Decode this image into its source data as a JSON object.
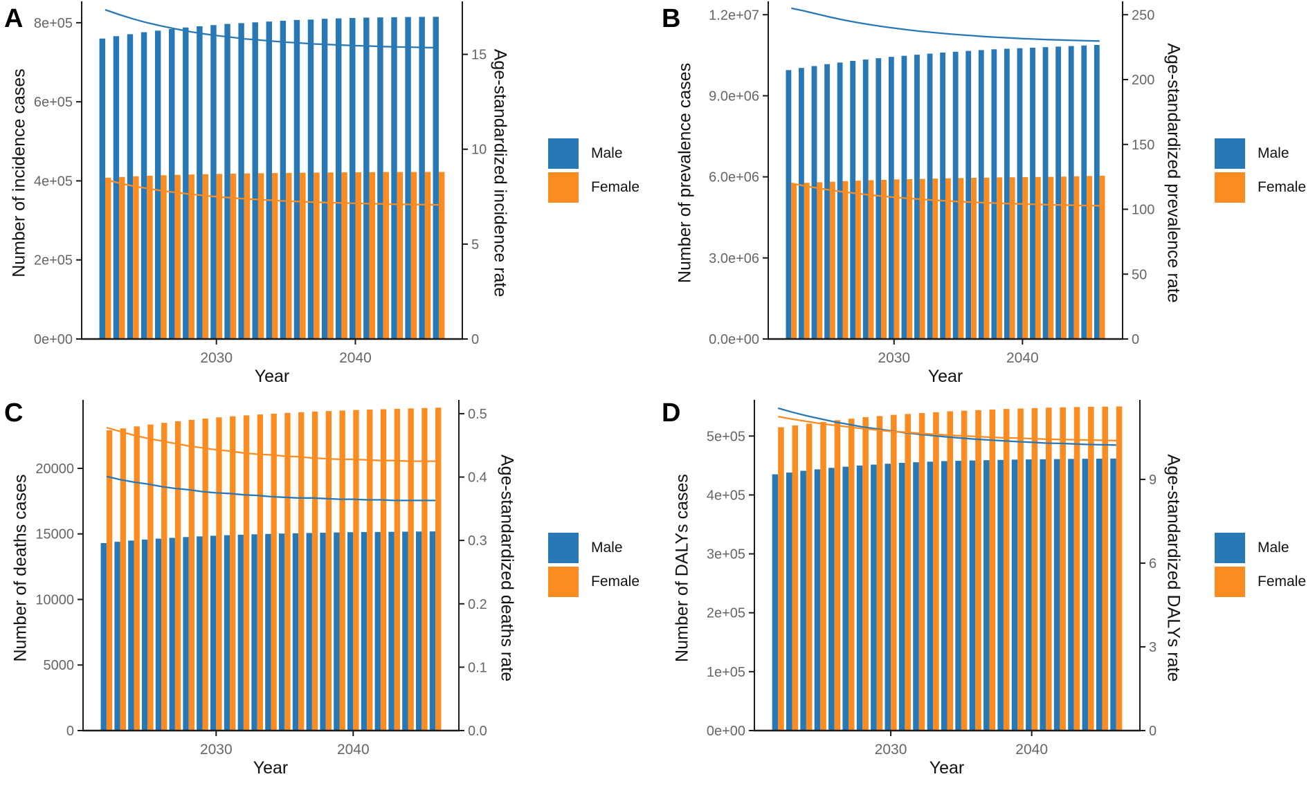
{
  "colors": {
    "male": "#2878B5",
    "female": "#FB8C21",
    "axis_line": "#1A1A1A",
    "tick_text": "#666666"
  },
  "legend": {
    "male_label": "Male",
    "female_label": "Female"
  },
  "years": [
    2022,
    2023,
    2024,
    2025,
    2026,
    2027,
    2028,
    2029,
    2030,
    2031,
    2032,
    2033,
    2034,
    2035,
    2036,
    2037,
    2038,
    2039,
    2040,
    2041,
    2042,
    2043,
    2044,
    2045,
    2046
  ],
  "chart_data": [
    {
      "type": "bar+line-dual-axis",
      "panel": "A",
      "xlabel": "Year",
      "ylabel_left": "Number of incidence cases",
      "ylabel_right": "Age-standardized incidence rate",
      "x_ticks": [
        2030,
        2040
      ],
      "left_max": 840000,
      "right_max": 17.5,
      "left_ticks": [
        {
          "v": 0,
          "label": "0e+00"
        },
        {
          "v": 200000,
          "label": "2e+05"
        },
        {
          "v": 400000,
          "label": "4e+05"
        },
        {
          "v": 600000,
          "label": "6e+05"
        },
        {
          "v": 800000,
          "label": "8e+05"
        }
      ],
      "right_ticks": [
        {
          "v": 0,
          "label": "0"
        },
        {
          "v": 5,
          "label": "5"
        },
        {
          "v": 10,
          "label": "10"
        },
        {
          "v": 15,
          "label": "15"
        }
      ],
      "series": [
        {
          "name": "Male",
          "kind": "bar",
          "axis": "left",
          "values": [
            760000,
            766000,
            771000,
            776000,
            780000,
            784000,
            788000,
            791000,
            794000,
            797000,
            799000,
            801000,
            803000,
            805000,
            807000,
            808000,
            810000,
            811000,
            812000,
            813000,
            813500,
            814000,
            814500,
            814800,
            815000
          ]
        },
        {
          "name": "Female",
          "kind": "bar",
          "axis": "left",
          "values": [
            408000,
            410000,
            411500,
            413000,
            414200,
            415200,
            416100,
            416900,
            417600,
            418200,
            418800,
            419300,
            419800,
            420200,
            420600,
            421000,
            421300,
            421600,
            421800,
            422000,
            422200,
            422300,
            422400,
            422500,
            422500
          ]
        },
        {
          "name": "Male age-standardized incidence rate",
          "kind": "line",
          "axis": "right",
          "values": [
            17.35,
            17.1,
            16.87,
            16.67,
            16.5,
            16.35,
            16.21,
            16.09,
            15.99,
            15.91,
            15.82,
            15.76,
            15.7,
            15.64,
            15.6,
            15.55,
            15.52,
            15.49,
            15.46,
            15.44,
            15.41,
            15.39,
            15.38,
            15.36,
            15.35
          ]
        },
        {
          "name": "Female age-standardized incidence rate",
          "kind": "line",
          "axis": "right",
          "values": [
            8.4,
            8.22,
            8.06,
            7.94,
            7.82,
            7.73,
            7.64,
            7.57,
            7.5,
            7.44,
            7.39,
            7.35,
            7.31,
            7.27,
            7.24,
            7.21,
            7.19,
            7.17,
            7.15,
            7.13,
            7.12,
            7.1,
            7.09,
            7.08,
            7.07
          ]
        }
      ]
    },
    {
      "type": "bar+line-dual-axis",
      "panel": "B",
      "xlabel": "Year",
      "ylabel_left": "Number of prevalence cases",
      "ylabel_right": "Age-standardized prevalence rate",
      "x_ticks": [
        2030,
        2040
      ],
      "left_max": 12288000,
      "right_max": 256,
      "left_ticks": [
        {
          "v": 0,
          "label": "0.0e+00"
        },
        {
          "v": 3000000,
          "label": "3.0e+06"
        },
        {
          "v": 6000000,
          "label": "6.0e+06"
        },
        {
          "v": 9000000,
          "label": "9.0e+06"
        },
        {
          "v": 12000000,
          "label": "1.2e+07"
        }
      ],
      "right_ticks": [
        {
          "v": 0,
          "label": "0"
        },
        {
          "v": 50,
          "label": "50"
        },
        {
          "v": 100,
          "label": "100"
        },
        {
          "v": 150,
          "label": "150"
        },
        {
          "v": 200,
          "label": "200"
        },
        {
          "v": 250,
          "label": "250"
        }
      ],
      "series": [
        {
          "name": "Male",
          "kind": "bar",
          "axis": "left",
          "values": [
            9950000,
            10030000,
            10100000,
            10170000,
            10230000,
            10290000,
            10340000,
            10390000,
            10440000,
            10480000,
            10520000,
            10560000,
            10600000,
            10630000,
            10660000,
            10690000,
            10720000,
            10740000,
            10760000,
            10780000,
            10800000,
            10820000,
            10840000,
            10860000,
            10880000
          ]
        },
        {
          "name": "Female",
          "kind": "bar",
          "axis": "left",
          "values": [
            5750000,
            5780000,
            5800000,
            5820000,
            5840000,
            5860000,
            5875000,
            5890000,
            5905000,
            5915000,
            5925000,
            5935000,
            5945000,
            5955000,
            5965000,
            5970000,
            5980000,
            5985000,
            5990000,
            5995000,
            6000000,
            6010000,
            6020000,
            6030000,
            6040000
          ]
        },
        {
          "name": "Male age-standardized prevalence rate",
          "kind": "line",
          "axis": "right",
          "values": [
            255,
            252.9,
            250.5,
            248.2,
            246.1,
            244.2,
            242.5,
            241,
            239.7,
            238.4,
            237.3,
            236.3,
            235.4,
            234.6,
            233.9,
            233.2,
            232.6,
            232.1,
            231.6,
            231.2,
            230.8,
            230.5,
            230.2,
            229.9,
            229.7
          ]
        },
        {
          "name": "Female age-standardized prevalence rate",
          "kind": "line",
          "axis": "right",
          "values": [
            120,
            118.1,
            116.4,
            114.9,
            113.5,
            112.3,
            111.2,
            110.2,
            109.3,
            108.5,
            107.8,
            107.1,
            106.5,
            106,
            105.5,
            105.1,
            104.7,
            104.4,
            104.1,
            103.8,
            103.5,
            103.3,
            103.1,
            102.9,
            102.8
          ]
        }
      ]
    },
    {
      "type": "bar+line-dual-axis",
      "panel": "C",
      "xlabel": "Year",
      "ylabel_left": "Number of deaths cases",
      "ylabel_right": "Age-standardized deaths rate",
      "x_ticks": [
        2030,
        2040
      ],
      "left_max": 24800,
      "right_max": 0.513,
      "left_ticks": [
        {
          "v": 0,
          "label": "0"
        },
        {
          "v": 5000,
          "label": "5000"
        },
        {
          "v": 10000,
          "label": "10000"
        },
        {
          "v": 15000,
          "label": "15000"
        },
        {
          "v": 20000,
          "label": "20000"
        }
      ],
      "right_ticks": [
        {
          "v": 0,
          "label": "0.0"
        },
        {
          "v": 0.1,
          "label": "0.1"
        },
        {
          "v": 0.2,
          "label": "0.2"
        },
        {
          "v": 0.3,
          "label": "0.3"
        },
        {
          "v": 0.4,
          "label": "0.4"
        },
        {
          "v": 0.5,
          "label": "0.5"
        }
      ],
      "series": [
        {
          "name": "Male",
          "kind": "bar",
          "axis": "left",
          "values": [
            14300,
            14400,
            14490,
            14570,
            14640,
            14700,
            14760,
            14810,
            14860,
            14900,
            14940,
            14970,
            15000,
            15030,
            15050,
            15070,
            15090,
            15110,
            15130,
            15140,
            15150,
            15160,
            15170,
            15180,
            15190
          ]
        },
        {
          "name": "Female",
          "kind": "bar",
          "axis": "left",
          "values": [
            22900,
            23050,
            23200,
            23340,
            23470,
            23590,
            23700,
            23800,
            23890,
            23970,
            24040,
            24110,
            24170,
            24230,
            24280,
            24330,
            24370,
            24410,
            24450,
            24480,
            24510,
            24540,
            24570,
            24600,
            24630
          ]
        },
        {
          "name": "Male age-standardized deaths rate",
          "kind": "line",
          "axis": "right",
          "values": [
            0.401,
            0.396,
            0.392,
            0.389,
            0.385,
            0.382,
            0.38,
            0.377,
            0.375,
            0.374,
            0.372,
            0.371,
            0.369,
            0.368,
            0.367,
            0.367,
            0.366,
            0.365,
            0.365,
            0.364,
            0.364,
            0.363,
            0.363,
            0.363,
            0.363
          ]
        },
        {
          "name": "Female age-standardized deaths rate",
          "kind": "line",
          "axis": "right",
          "values": [
            0.478,
            0.472,
            0.466,
            0.461,
            0.457,
            0.453,
            0.449,
            0.446,
            0.443,
            0.441,
            0.438,
            0.436,
            0.435,
            0.433,
            0.432,
            0.43,
            0.429,
            0.428,
            0.428,
            0.427,
            0.426,
            0.426,
            0.425,
            0.425,
            0.425
          ]
        }
      ]
    },
    {
      "type": "bar+line-dual-axis",
      "panel": "D",
      "xlabel": "Year",
      "ylabel_left": "Number of DALYs cases",
      "ylabel_right": "Age-standardized DALYs rate",
      "x_ticks": [
        2030,
        2040
      ],
      "left_max": 552000,
      "right_max": 11.65,
      "left_ticks": [
        {
          "v": 0,
          "label": "0e+00"
        },
        {
          "v": 100000,
          "label": "1e+05"
        },
        {
          "v": 200000,
          "label": "2e+05"
        },
        {
          "v": 300000,
          "label": "3e+05"
        },
        {
          "v": 400000,
          "label": "4e+05"
        },
        {
          "v": 500000,
          "label": "5e+05"
        }
      ],
      "right_ticks": [
        {
          "v": 0,
          "label": "0"
        },
        {
          "v": 3,
          "label": "3"
        },
        {
          "v": 6,
          "label": "6"
        },
        {
          "v": 9,
          "label": "9"
        }
      ],
      "series": [
        {
          "name": "Male",
          "kind": "bar",
          "axis": "left",
          "values": [
            435000,
            438000,
            441000,
            443500,
            446000,
            448000,
            450000,
            451500,
            453000,
            454500,
            455500,
            456500,
            457500,
            458000,
            458500,
            459000,
            459500,
            460000,
            460300,
            460600,
            460900,
            461200,
            461400,
            461600,
            461800
          ]
        },
        {
          "name": "Female",
          "kind": "bar",
          "axis": "left",
          "values": [
            515000,
            518000,
            521000,
            524000,
            527000,
            529500,
            532000,
            534000,
            536000,
            537500,
            539000,
            540500,
            542000,
            543000,
            544000,
            545000,
            546000,
            546800,
            547500,
            548200,
            548800,
            549300,
            549700,
            550000,
            550300
          ]
        },
        {
          "name": "Male age-standardized DALYs rate",
          "kind": "line",
          "axis": "right",
          "values": [
            11.55,
            11.41,
            11.28,
            11.17,
            11.06,
            10.97,
            10.88,
            10.81,
            10.74,
            10.67,
            10.62,
            10.57,
            10.52,
            10.48,
            10.44,
            10.41,
            10.38,
            10.35,
            10.33,
            10.3,
            10.29,
            10.27,
            10.25,
            10.24,
            10.23
          ]
        },
        {
          "name": "Female age-standardized DALYs rate",
          "kind": "line",
          "axis": "right",
          "values": [
            11.25,
            11.16,
            11.08,
            11,
            10.94,
            10.88,
            10.82,
            10.77,
            10.72,
            10.69,
            10.65,
            10.62,
            10.59,
            10.56,
            10.54,
            10.51,
            10.49,
            10.48,
            10.46,
            10.44,
            10.43,
            10.42,
            10.41,
            10.4,
            10.39
          ]
        }
      ]
    }
  ]
}
